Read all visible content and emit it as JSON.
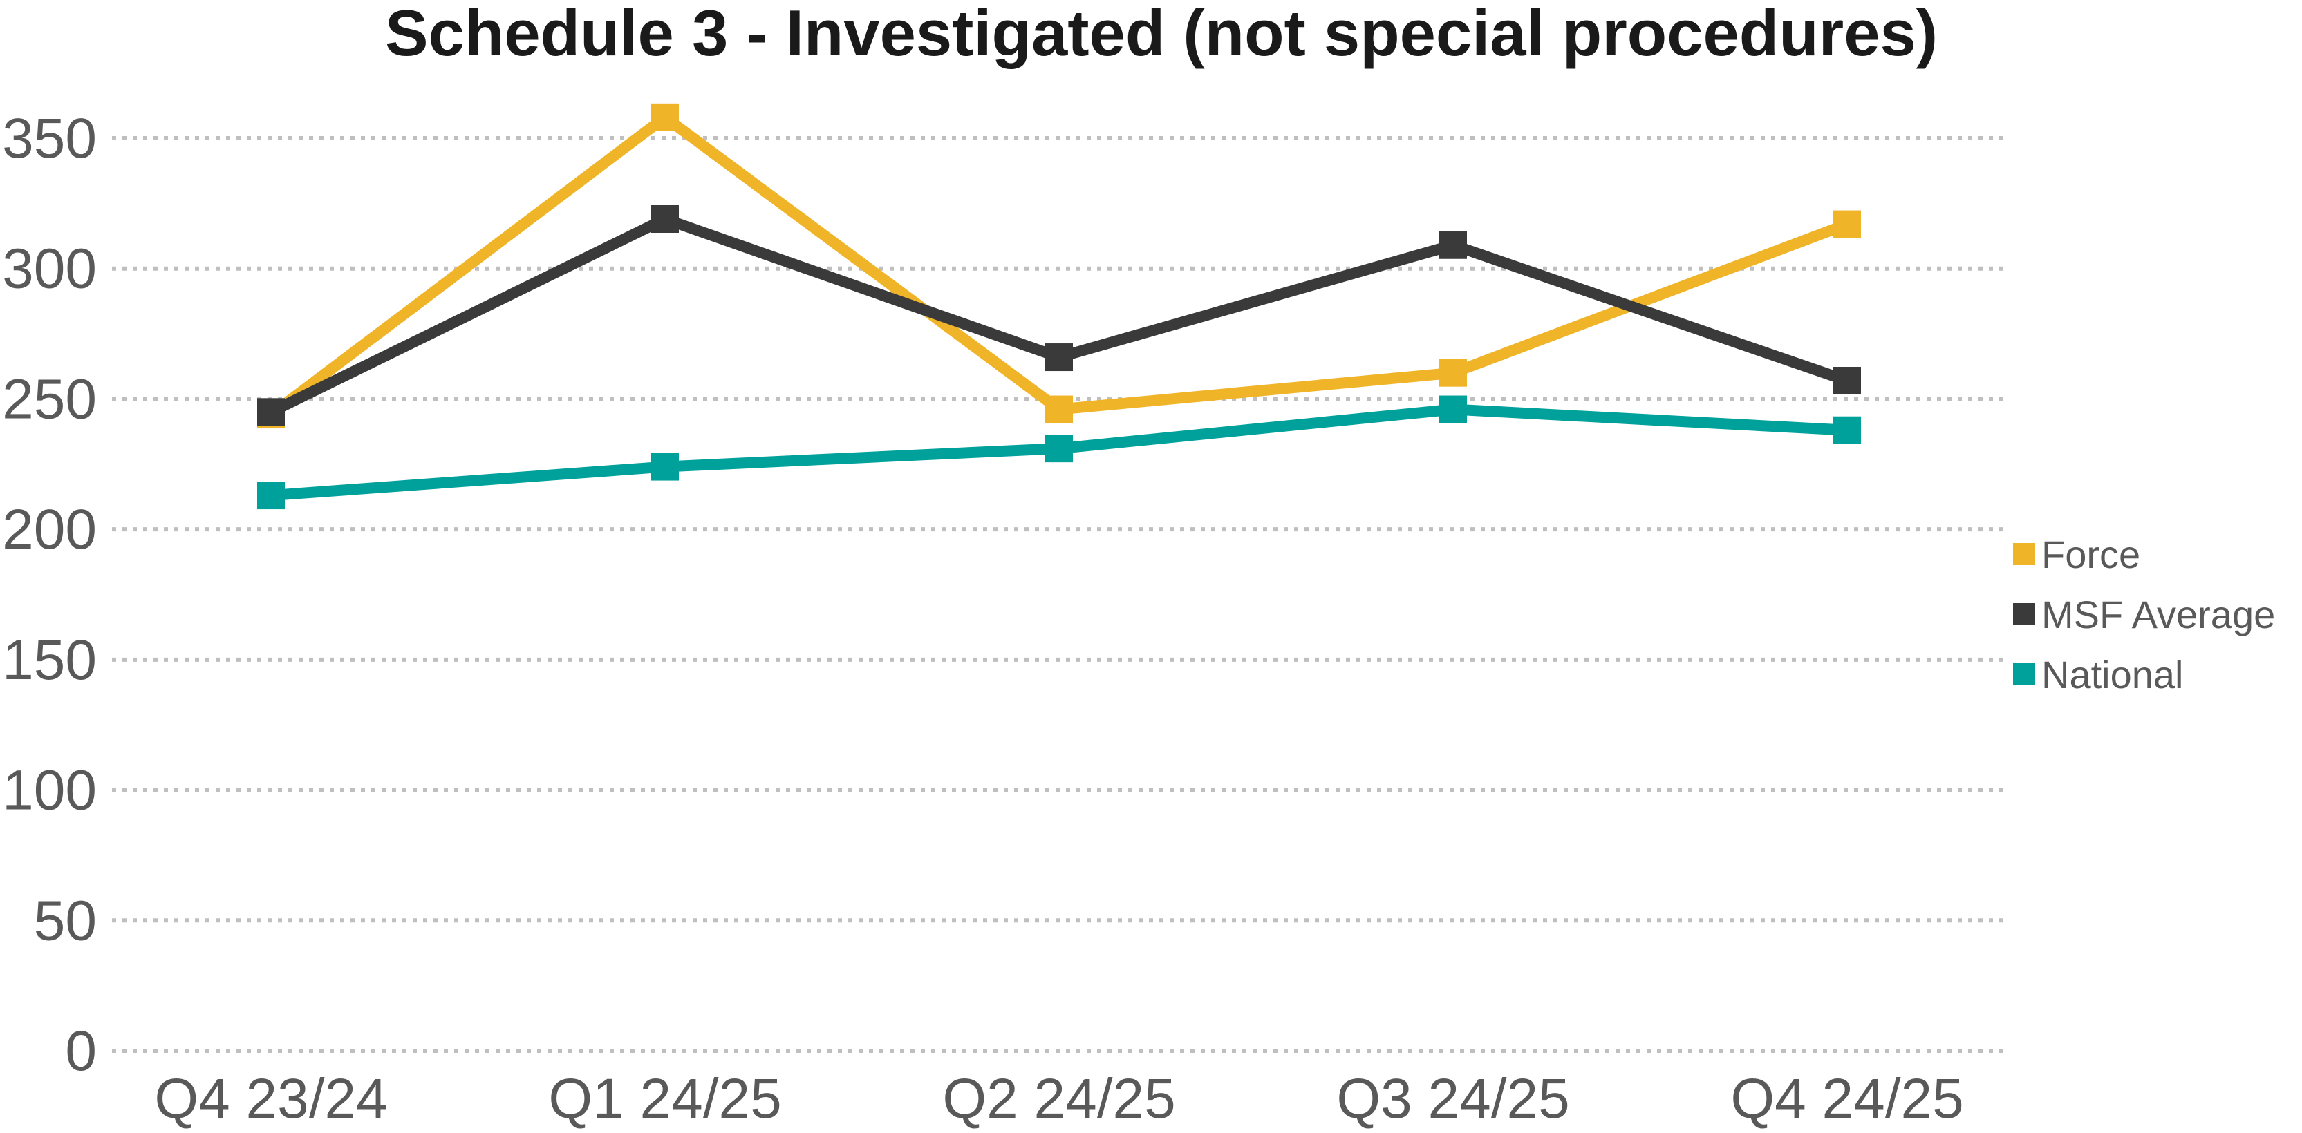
{
  "chart_data": {
    "type": "line",
    "title": "Schedule 3 - Investigated (not special procedures)",
    "xlabel": "",
    "ylabel": "",
    "categories": [
      "Q4 23/24",
      "Q1 24/25",
      "Q2 24/25",
      "Q3 24/25",
      "Q4 24/25"
    ],
    "ylim": [
      0,
      350
    ],
    "yticks": [
      0,
      50,
      100,
      150,
      200,
      250,
      300,
      350
    ],
    "grid": true,
    "grid_style": "dotted",
    "legend_position": "right",
    "marker": "square",
    "series": [
      {
        "name": "Force",
        "color": "#F0B429",
        "values": [
          244,
          358,
          246,
          260,
          317
        ]
      },
      {
        "name": "MSF Average",
        "color": "#3A3A3A",
        "values": [
          245,
          319,
          266,
          309,
          257
        ]
      },
      {
        "name": "National",
        "color": "#00A19A",
        "values": [
          213,
          224,
          231,
          246,
          238
        ]
      }
    ]
  }
}
